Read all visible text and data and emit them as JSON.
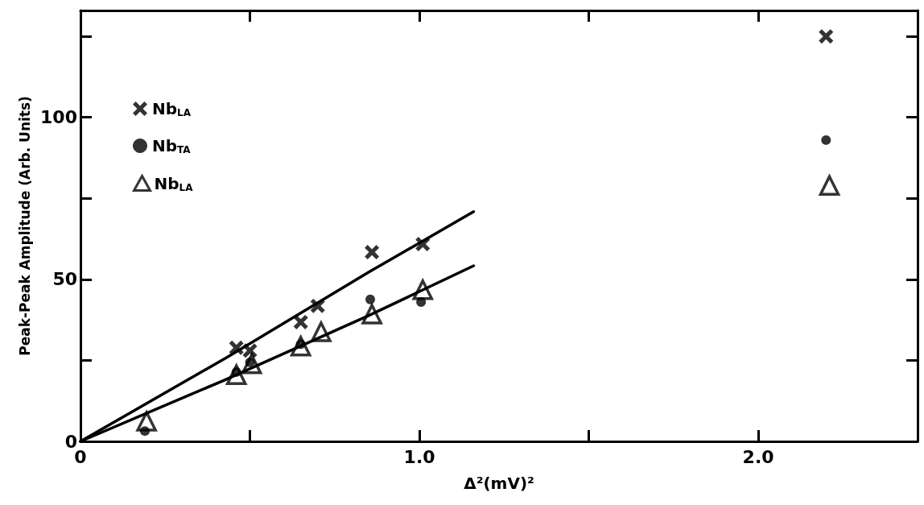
{
  "chart_data": {
    "type": "scatter",
    "xlabel": "Δ²(mV)²",
    "ylabel": "Peak-Peak Amplitude (Arb. Units)",
    "xlim": [
      0,
      2.47
    ],
    "ylim": [
      0,
      133
    ],
    "xticks": [
      0,
      {
        "value": 0.5,
        "label": null
      },
      {
        "value": 1.0,
        "label": "1.0"
      },
      {
        "value": 1.5,
        "label": null
      },
      {
        "value": 2.0,
        "label": "2.0"
      }
    ],
    "yticks": [
      0,
      {
        "value": 25,
        "label": null
      },
      50,
      {
        "value": 75,
        "label": null
      },
      100,
      {
        "value": 125,
        "label": null
      }
    ],
    "grid": false,
    "legend": "top left",
    "series": [
      {
        "name": "Nb$_{LA}$",
        "color": "#000000",
        "marker": "cross",
        "x": [
          0.46,
          0.5,
          0.65,
          0.7,
          0.86,
          1.01,
          2.2
        ],
        "values": [
          28.9,
          28,
          36.8,
          41.8,
          58.4,
          60.9,
          125
        ]
      },
      {
        "name": "Nb$_{TA}$",
        "color": "#000000",
        "marker": "circle",
        "x": [
          0.19,
          0.46,
          0.5,
          0.65,
          0.855,
          1.005,
          2.2
        ],
        "values": [
          3.2,
          21.4,
          24.4,
          30,
          43.8,
          43,
          93
        ]
      },
      {
        "name": "Nb$_{LA}$",
        "color": "#000000",
        "marker": "triangle",
        "x": [
          0.195,
          0.46,
          0.505,
          0.65,
          0.71,
          0.86,
          1.01,
          2.21
        ],
        "values": [
          6.2,
          20.6,
          23.9,
          29.4,
          33.8,
          39.3,
          46.8,
          79
        ]
      },
      {
        "type": "line",
        "color": "#000000",
        "marker": "none",
        "line_style": "solid",
        "x": [
          0,
          0.435,
          0.85,
          1.16
        ],
        "values": [
          0,
          26.1,
          52.2,
          70.9
        ]
      },
      {
        "type": "line",
        "color": "#000000",
        "marker": "none",
        "line_style": "solid",
        "x": [
          0,
          0.42,
          0.85,
          1.16
        ],
        "values": [
          0,
          18.7,
          38.8,
          54.2
        ]
      }
    ]
  }
}
